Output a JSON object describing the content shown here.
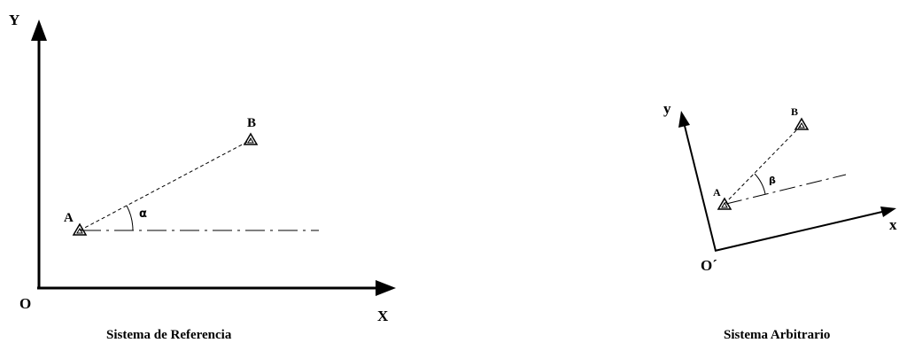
{
  "reference_system": {
    "axis_y_label": "Y",
    "axis_x_label": "X",
    "origin_label": "O",
    "point_a_label": "A",
    "point_b_label": "B",
    "angle_label": "α",
    "caption": "Sistema de Referencia"
  },
  "arbitrary_system": {
    "axis_y_label": "y",
    "axis_x_label": "x",
    "origin_label": "O´",
    "point_a_label": "A",
    "point_b_label": "B",
    "angle_label": "β",
    "caption": "Sistema Arbitrario"
  }
}
